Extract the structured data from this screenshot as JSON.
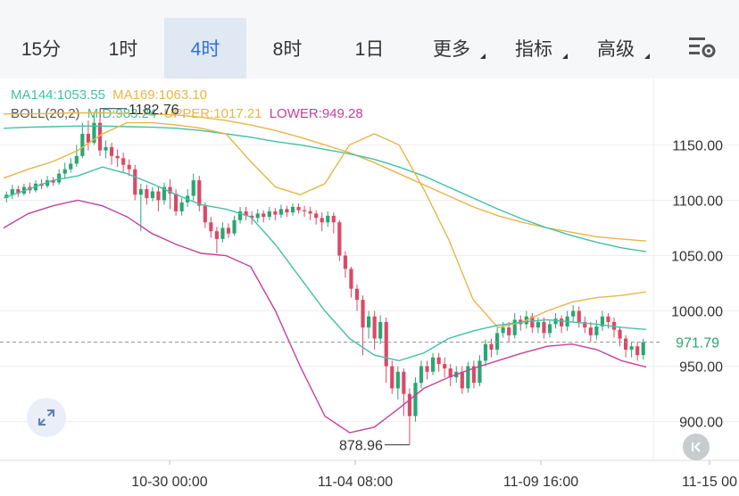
{
  "tabs": [
    {
      "label": "15分",
      "active": false,
      "caret": false
    },
    {
      "label": "1时",
      "active": false,
      "caret": false
    },
    {
      "label": "4时",
      "active": true,
      "caret": false
    },
    {
      "label": "8时",
      "active": false,
      "caret": false
    },
    {
      "label": "1日",
      "active": false,
      "caret": false
    },
    {
      "label": "更多",
      "active": false,
      "caret": true
    },
    {
      "label": "指标",
      "active": false,
      "caret": true
    },
    {
      "label": "高级",
      "active": false,
      "caret": true
    }
  ],
  "menu_icon": "chart-settings-icon",
  "legend": {
    "ma144": "MA144:1053.55",
    "ma169": "MA169:1063.10",
    "boll": "BOLL(20,2)",
    "mid": "MID:983.24",
    "upper": "UPPER:1017.21",
    "lower": "LOWER:949.28"
  },
  "colors": {
    "up": "#2aa672",
    "down": "#d94a67",
    "ma144": "#43c0a6",
    "ma169": "#e7b646",
    "boll_mid": "#43c0a6",
    "boll_upper": "#e7b646",
    "boll_lower": "#c2429a",
    "price_tag": "#2aa672",
    "active_tab": "#2f6fd6"
  },
  "buttons": {
    "expand": "expand-icon",
    "collapse": "collapse-left-icon"
  },
  "chart_data": {
    "type": "candlestick",
    "y_ticks": [
      "1150.00",
      "1100.00",
      "1050.00",
      "1000.00",
      "950.00",
      "900.00"
    ],
    "x_ticks": [
      "10-30 00:00",
      "11-04 08:00",
      "11-09 16:00",
      "11-15 00"
    ],
    "annotations": {
      "high": "1182.76",
      "low": "878.96"
    },
    "current_price": "971.79",
    "ylim": [
      865,
      1210
    ],
    "candles": [
      [
        1102,
        1105,
        1098,
        1108
      ],
      [
        1105,
        1110,
        1101,
        1114
      ],
      [
        1110,
        1106,
        1103,
        1113
      ],
      [
        1106,
        1112,
        1104,
        1115
      ],
      [
        1112,
        1109,
        1106,
        1116
      ],
      [
        1109,
        1115,
        1107,
        1118
      ],
      [
        1115,
        1113,
        1110,
        1119
      ],
      [
        1113,
        1118,
        1111,
        1122
      ],
      [
        1118,
        1116,
        1113,
        1121
      ],
      [
        1116,
        1124,
        1114,
        1128
      ],
      [
        1124,
        1128,
        1120,
        1134
      ],
      [
        1128,
        1133,
        1125,
        1138
      ],
      [
        1133,
        1140,
        1130,
        1150
      ],
      [
        1140,
        1160,
        1138,
        1170
      ],
      [
        1160,
        1152,
        1145,
        1172
      ],
      [
        1152,
        1170,
        1150,
        1178
      ],
      [
        1170,
        1145,
        1140,
        1182.76
      ],
      [
        1145,
        1148,
        1138,
        1154
      ],
      [
        1148,
        1140,
        1132,
        1152
      ],
      [
        1140,
        1138,
        1130,
        1146
      ],
      [
        1138,
        1132,
        1125,
        1143
      ],
      [
        1132,
        1128,
        1122,
        1137
      ],
      [
        1128,
        1105,
        1100,
        1132
      ],
      [
        1105,
        1110,
        1072,
        1115
      ],
      [
        1110,
        1102,
        1096,
        1114
      ],
      [
        1102,
        1108,
        1099,
        1112
      ],
      [
        1108,
        1100,
        1090,
        1112
      ],
      [
        1100,
        1112,
        1096,
        1116
      ],
      [
        1112,
        1106,
        1092,
        1119
      ],
      [
        1106,
        1090,
        1086,
        1110
      ],
      [
        1090,
        1098,
        1086,
        1102
      ],
      [
        1098,
        1104,
        1094,
        1110
      ],
      [
        1104,
        1118,
        1100,
        1124
      ],
      [
        1118,
        1095,
        1090,
        1122
      ],
      [
        1095,
        1080,
        1075,
        1098
      ],
      [
        1080,
        1072,
        1066,
        1085
      ],
      [
        1072,
        1065,
        1052,
        1076
      ],
      [
        1065,
        1075,
        1062,
        1080
      ],
      [
        1075,
        1070,
        1066,
        1079
      ],
      [
        1070,
        1082,
        1068,
        1086
      ],
      [
        1082,
        1090,
        1079,
        1094
      ],
      [
        1090,
        1086,
        1082,
        1094
      ],
      [
        1086,
        1084,
        1078,
        1090
      ],
      [
        1084,
        1088,
        1080,
        1092
      ],
      [
        1088,
        1085,
        1080,
        1091
      ],
      [
        1085,
        1090,
        1082,
        1094
      ],
      [
        1090,
        1087,
        1082,
        1093
      ],
      [
        1087,
        1092,
        1084,
        1096
      ],
      [
        1092,
        1089,
        1085,
        1095
      ],
      [
        1089,
        1094,
        1086,
        1097
      ],
      [
        1094,
        1091,
        1088,
        1097
      ],
      [
        1091,
        1090,
        1085,
        1095
      ],
      [
        1090,
        1088,
        1082,
        1094
      ],
      [
        1088,
        1084,
        1078,
        1091
      ],
      [
        1084,
        1080,
        1072,
        1089
      ],
      [
        1080,
        1086,
        1076,
        1090
      ],
      [
        1086,
        1080,
        1070,
        1089
      ],
      [
        1080,
        1050,
        1045,
        1082
      ],
      [
        1050,
        1038,
        1030,
        1054
      ],
      [
        1038,
        1020,
        1012,
        1040
      ],
      [
        1020,
        1010,
        1000,
        1024
      ],
      [
        1010,
        985,
        960,
        1014
      ],
      [
        985,
        995,
        975,
        1000
      ],
      [
        995,
        975,
        965,
        1000
      ],
      [
        975,
        990,
        970,
        996
      ],
      [
        990,
        950,
        935,
        994
      ],
      [
        950,
        930,
        925,
        955
      ],
      [
        930,
        945,
        920,
        950
      ],
      [
        945,
        925,
        905,
        948
      ],
      [
        925,
        905,
        878.96,
        930
      ],
      [
        905,
        935,
        900,
        940
      ],
      [
        935,
        950,
        930,
        955
      ],
      [
        950,
        945,
        938,
        955
      ],
      [
        945,
        958,
        942,
        962
      ],
      [
        958,
        952,
        945,
        962
      ],
      [
        952,
        948,
        940,
        958
      ],
      [
        948,
        940,
        932,
        952
      ],
      [
        940,
        945,
        935,
        950
      ],
      [
        945,
        930,
        925,
        950
      ],
      [
        930,
        950,
        926,
        954
      ],
      [
        950,
        935,
        930,
        955
      ],
      [
        935,
        955,
        932,
        960
      ],
      [
        955,
        970,
        950,
        974
      ],
      [
        970,
        965,
        958,
        975
      ],
      [
        965,
        980,
        960,
        985
      ],
      [
        980,
        985,
        976,
        990
      ],
      [
        985,
        978,
        972,
        990
      ],
      [
        978,
        992,
        975,
        998
      ],
      [
        992,
        988,
        982,
        996
      ],
      [
        988,
        995,
        984,
        1000
      ],
      [
        995,
        985,
        980,
        998
      ],
      [
        985,
        990,
        980,
        994
      ],
      [
        990,
        980,
        975,
        994
      ],
      [
        980,
        988,
        976,
        992
      ],
      [
        988,
        993,
        984,
        998
      ],
      [
        993,
        986,
        980,
        996
      ],
      [
        986,
        995,
        982,
        1000
      ],
      [
        995,
        1000,
        990,
        1005
      ],
      [
        1000,
        990,
        985,
        1004
      ],
      [
        990,
        985,
        980,
        995
      ],
      [
        985,
        978,
        972,
        990
      ],
      [
        978,
        986,
        974,
        992
      ],
      [
        986,
        995,
        982,
        1000
      ],
      [
        995,
        990,
        984,
        998
      ],
      [
        990,
        983,
        976,
        994
      ],
      [
        983,
        975,
        968,
        986
      ],
      [
        975,
        965,
        958,
        978
      ],
      [
        965,
        968,
        958,
        972
      ],
      [
        968,
        960,
        955,
        972
      ],
      [
        960,
        971.79,
        956,
        975
      ]
    ],
    "ma144": [
      1165,
      1166,
      1166.5,
      1167,
      1167,
      1166.5,
      1166,
      1165,
      1163,
      1160,
      1157,
      1153,
      1150,
      1146,
      1142,
      1137,
      1130,
      1122,
      1112,
      1102,
      1092,
      1083,
      1075,
      1068,
      1062,
      1057,
      1053.55
    ],
    "ma169": [
      1178,
      1178,
      1178.5,
      1179,
      1179,
      1178.5,
      1178,
      1177,
      1175,
      1172,
      1168,
      1163,
      1157,
      1150,
      1143,
      1134,
      1124,
      1114,
      1104,
      1094,
      1086,
      1080,
      1075,
      1071,
      1067,
      1065,
      1063.1
    ],
    "boll_upper": [
      1120,
      1128,
      1135,
      1145,
      1160,
      1170,
      1170,
      1168,
      1165,
      1160,
      1135,
      1112,
      1105,
      1115,
      1150,
      1160,
      1150,
      1110,
      1065,
      1010,
      985,
      990,
      1000,
      1008,
      1012,
      1014,
      1017.21
    ],
    "boll_mid": [
      1102,
      1110,
      1118,
      1122,
      1130,
      1124,
      1115,
      1105,
      1096,
      1092,
      1085,
      1060,
      1030,
      1000,
      975,
      960,
      955,
      962,
      975,
      982,
      987,
      990,
      992,
      990,
      988,
      985,
      983.24
    ],
    "boll_lower": [
      1075,
      1088,
      1095,
      1100,
      1095,
      1085,
      1070,
      1060,
      1052,
      1050,
      1040,
      1000,
      950,
      905,
      890,
      895,
      912,
      930,
      940,
      948,
      955,
      962,
      968,
      970,
      965,
      955,
      949.28
    ]
  }
}
